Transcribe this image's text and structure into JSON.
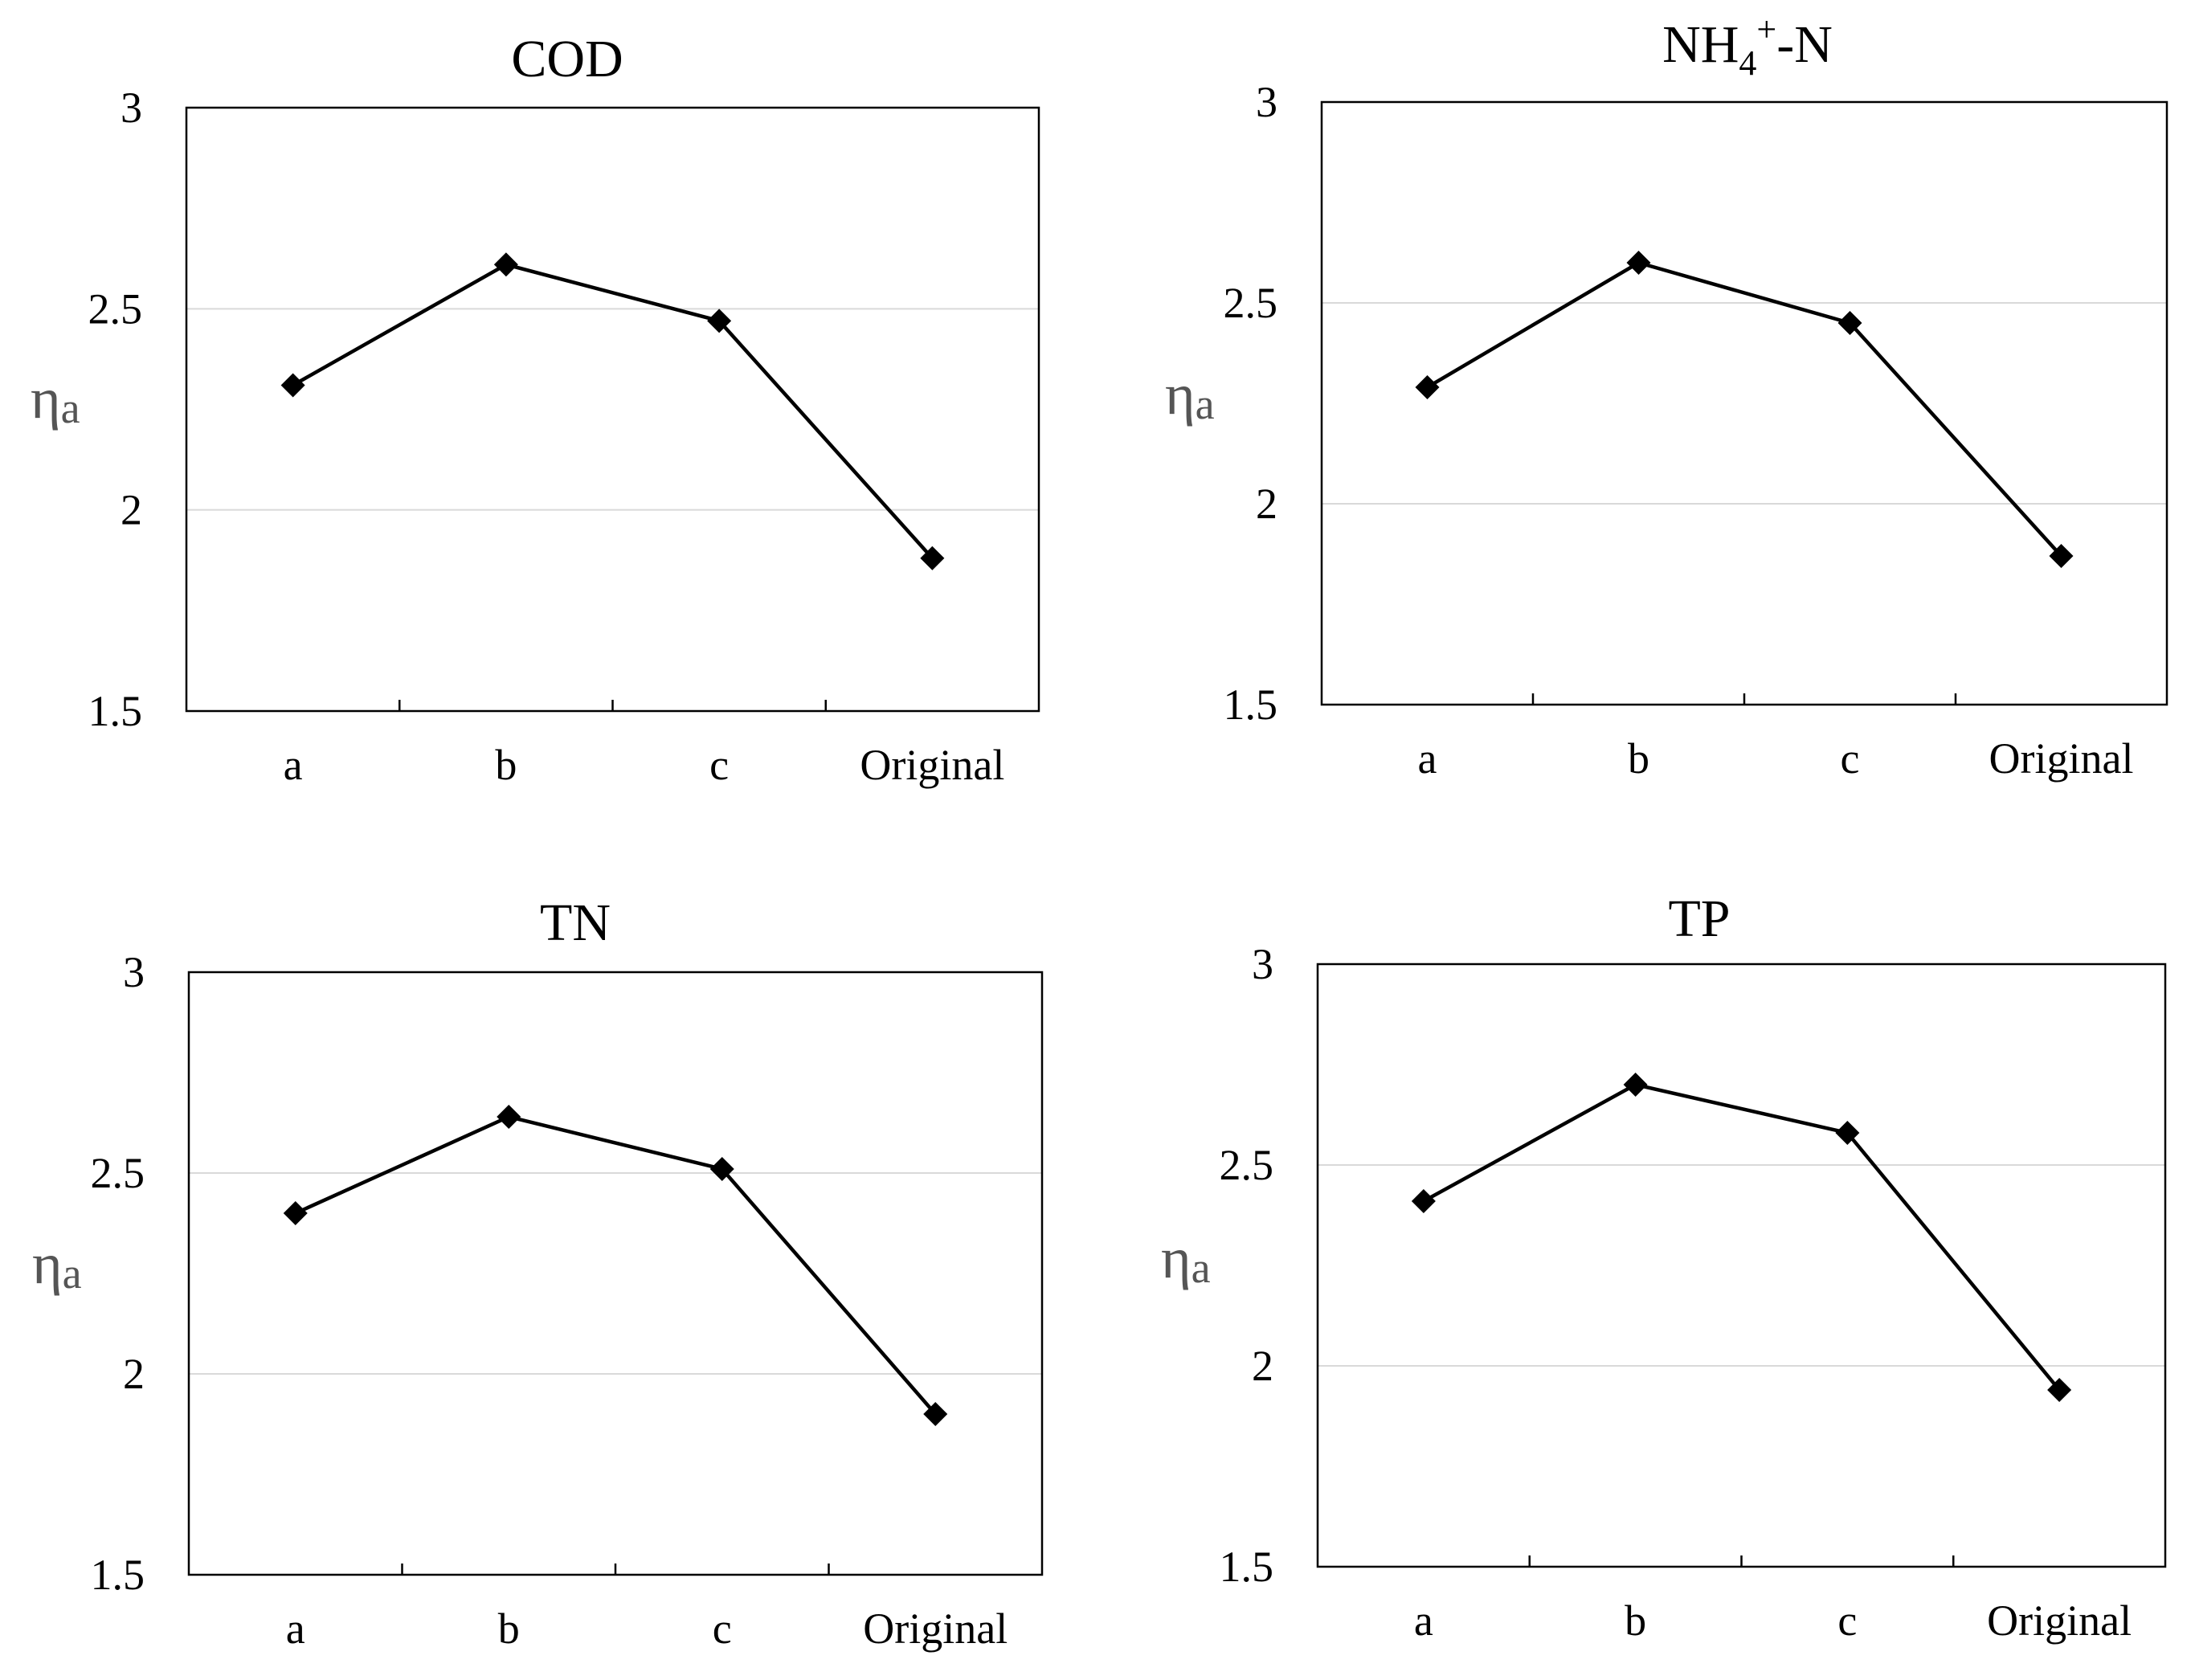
{
  "chart_data": [
    {
      "type": "line",
      "title": "COD",
      "ylabel": "ηa",
      "xlabel": "",
      "categories": [
        "a",
        "b",
        "c",
        "Original"
      ],
      "values": [
        2.31,
        2.61,
        2.47,
        1.88
      ],
      "ylim": [
        1.5,
        3
      ],
      "yticks": [
        "1.5",
        "2",
        "2.5",
        "3"
      ],
      "grid": true
    },
    {
      "type": "line",
      "title": "NH4+-N",
      "title_parts": {
        "base": "NH",
        "sub": "4",
        "sup": "+",
        "rest": "-N"
      },
      "ylabel": "ηa",
      "xlabel": "",
      "categories": [
        "a",
        "b",
        "c",
        "Original"
      ],
      "values": [
        2.29,
        2.6,
        2.45,
        1.87
      ],
      "ylim": [
        1.5,
        3
      ],
      "yticks": [
        "1.5",
        "2",
        "2.5",
        "3"
      ],
      "grid": true
    },
    {
      "type": "line",
      "title": "TN",
      "ylabel": "ηa",
      "xlabel": "",
      "categories": [
        "a",
        "b",
        "c",
        "Original"
      ],
      "values": [
        2.4,
        2.64,
        2.51,
        1.9
      ],
      "ylim": [
        1.5,
        3
      ],
      "yticks": [
        "1.5",
        "2",
        "2.5",
        "3"
      ],
      "grid": true
    },
    {
      "type": "line",
      "title": "TP",
      "ylabel": "ηa",
      "xlabel": "",
      "categories": [
        "a",
        "b",
        "c",
        "Original"
      ],
      "values": [
        2.41,
        2.7,
        2.58,
        1.94
      ],
      "ylim": [
        1.5,
        3
      ],
      "yticks": [
        "1.5",
        "2",
        "2.5",
        "3"
      ],
      "grid": true
    }
  ]
}
